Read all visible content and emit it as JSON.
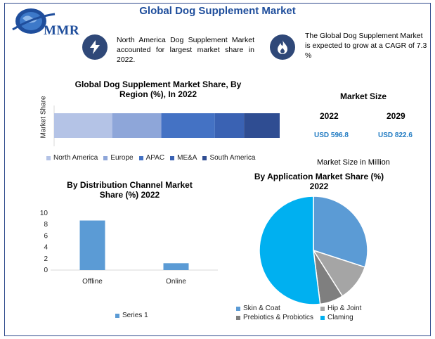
{
  "header": {
    "title": "Global Dog Supplement Market",
    "logo_text": "MMR"
  },
  "info": {
    "left_text": "North America Dog Supplement Market accounted for largest market share in 2022.",
    "right_text": "The Global Dog Supplement Market is expected to grow at a CAGR of 7.3 %"
  },
  "market_size": {
    "title": "Market Size",
    "years": [
      "2022",
      "2029"
    ],
    "values": [
      "USD 596.8",
      "USD 822.6"
    ],
    "footnote": "Market Size in Million"
  },
  "colors": {
    "accent": "#1f4e9c",
    "icon_bg": "#2f4878",
    "value_blue": "#1f7ac2",
    "na": "#b4c3e6",
    "europe": "#8ea6d9",
    "apac": "#4472c4",
    "mea": "#3a62b3",
    "sa": "#2f4d92",
    "skin": "#5b9bd5",
    "hip": "#a5a5a5",
    "pre": "#7f7f7f",
    "clam": "#00b0f0",
    "bar": "#5b9bd5"
  },
  "icons": {
    "left": "lightning-icon",
    "right": "flame-icon",
    "logo": "globe-icon"
  },
  "chart_data": [
    {
      "type": "bar",
      "orientation": "horizontal-stacked",
      "title": "Global Dog Supplement Market Share, By Region (%), In 2022",
      "ylabel": "Market Share",
      "legend_position": "bottom",
      "series": [
        {
          "name": "North America",
          "values": [
            26
          ]
        },
        {
          "name": "Europe",
          "values": [
            22
          ]
        },
        {
          "name": "APAC",
          "values": [
            24
          ]
        },
        {
          "name": "ME&A",
          "values": [
            13
          ]
        },
        {
          "name": "South America",
          "values": [
            16
          ]
        }
      ]
    },
    {
      "type": "bar",
      "title": "By Distribution Channel Market Share (%) 2022",
      "categories": [
        "Offline",
        "Online"
      ],
      "series": [
        {
          "name": "Series 1",
          "values": [
            8.7,
            1.2
          ]
        }
      ],
      "yticks": [
        "0",
        "2",
        "4",
        "6",
        "8",
        "10"
      ],
      "ylim": [
        0,
        10
      ],
      "grid": false,
      "legend_position": "bottom"
    },
    {
      "type": "pie",
      "title": "By Application Market Share (%) 2022",
      "labels": [
        "Skin & Coat",
        "Hip & Joint",
        "Prebiotics & Probiotics",
        "Claming"
      ],
      "values": [
        30,
        11,
        7,
        52
      ],
      "legend_position": "bottom"
    }
  ]
}
